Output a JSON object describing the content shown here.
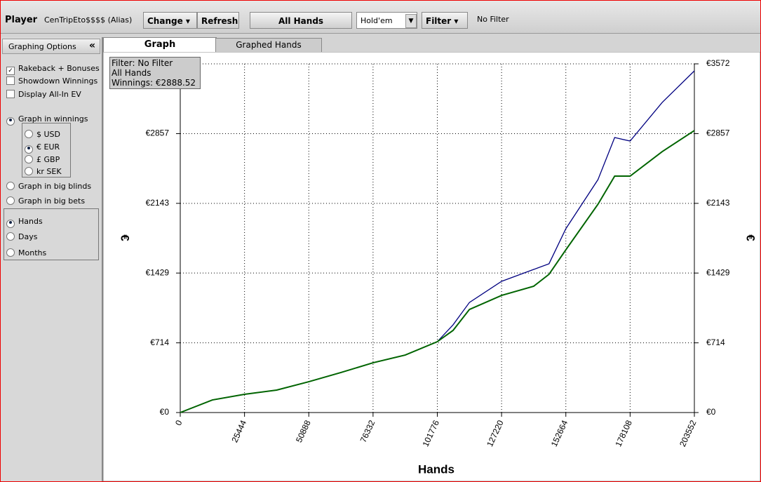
{
  "toolbar": {
    "player_label": "Player",
    "player_name": "CenTripEto$$$$ (Alias)",
    "change": "Change",
    "refresh": "Refresh",
    "all_hands": "All Hands",
    "game": "Hold'em",
    "filter": "Filter",
    "filter_status": "No Filter"
  },
  "sidebar": {
    "title": "Graphing Options",
    "collapse": "«",
    "items": [
      {
        "label": "Rakeback + Bonuses",
        "checked": true
      },
      {
        "label": "Showdown Winnings",
        "checked": false
      },
      {
        "label": "Display All-In EV",
        "checked": false
      },
      {
        "label": "Graph in winnings",
        "checked": true
      },
      {
        "label": "$ USD",
        "checked": false
      },
      {
        "label": "€ EUR",
        "checked": true
      },
      {
        "label": "£ GBP",
        "checked": false
      },
      {
        "label": "kr SEK",
        "checked": false
      },
      {
        "label": "Graph in big blinds",
        "checked": false
      },
      {
        "label": "Graph in big bets",
        "checked": false
      },
      {
        "label": "Hands",
        "checked": true
      },
      {
        "label": "Days",
        "checked": false
      },
      {
        "label": "Months",
        "checked": false
      }
    ]
  },
  "tabs": [
    "Graph",
    "Graphed Hands"
  ],
  "info_box": [
    "Filter: No Filter",
    "All Hands",
    "Winnings: €2888.52"
  ],
  "chart_data": {
    "type": "line",
    "x_label": "Hands",
    "y_label": "€",
    "x": [
      0,
      12722,
      25444,
      38166,
      50888,
      63610,
      76332,
      89054,
      101776,
      108000,
      114498,
      127220,
      139942,
      146000,
      152664,
      165386,
      172000,
      178108,
      190830,
      203552
    ],
    "series": [
      {
        "color": "#000080",
        "values": [
          0,
          129,
          187,
          230,
          316,
          410,
          510,
          589,
          726,
          898,
          1128,
          1344,
          1466,
          1524,
          1883,
          2386,
          2817,
          2781,
          3177,
          3500
        ]
      },
      {
        "color": "#006400",
        "values": [
          0,
          129,
          187,
          230,
          316,
          410,
          510,
          589,
          726,
          841,
          1056,
          1200,
          1294,
          1416,
          1667,
          2134,
          2422,
          2422,
          2673,
          2888.52
        ]
      }
    ],
    "xlim": [
      0,
      203552
    ],
    "xticks": [
      0,
      25444,
      50888,
      76332,
      101776,
      127220,
      152664,
      178108,
      203552
    ],
    "ylim": [
      0,
      3572
    ],
    "yticks": [
      {
        "value": 0,
        "label": "€0"
      },
      {
        "value": 714,
        "label": "€714"
      },
      {
        "value": 1429,
        "label": "€1429"
      },
      {
        "value": 2143,
        "label": "€2143"
      },
      {
        "value": 2857,
        "label": "€2857"
      },
      {
        "value": 3572,
        "label": "€3572"
      }
    ],
    "grid": true
  }
}
